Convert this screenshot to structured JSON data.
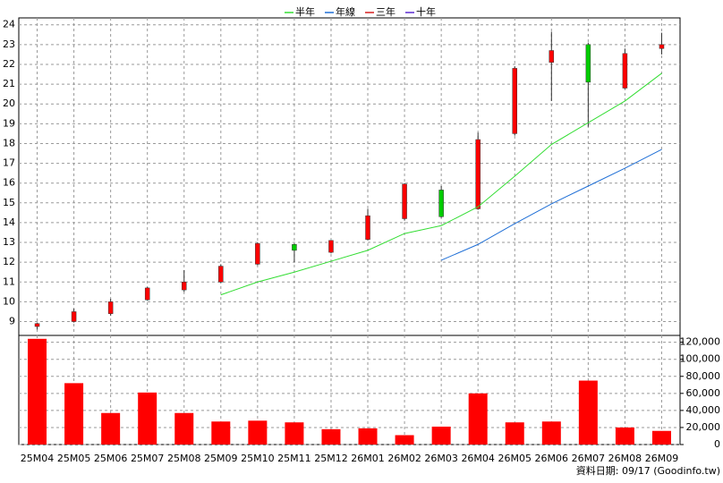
{
  "chart_data": [
    {
      "type": "candlestick",
      "categories": [
        "25M04",
        "25M05",
        "25M06",
        "25M07",
        "25M08",
        "25M09",
        "25M10",
        "25M11",
        "25M12",
        "26M01",
        "26M02",
        "26M03",
        "26M04",
        "26M05",
        "26M06",
        "26M07",
        "26M08",
        "26M09"
      ],
      "open": [
        8.75,
        9.0,
        9.4,
        10.1,
        10.6,
        11.0,
        11.9,
        12.9,
        12.5,
        13.15,
        14.2,
        15.65,
        14.7,
        18.5,
        22.1,
        23.0,
        20.8,
        22.8
      ],
      "high": [
        8.95,
        9.65,
        10.15,
        10.75,
        11.6,
        11.9,
        13.0,
        12.95,
        13.1,
        14.7,
        16.0,
        15.85,
        18.55,
        21.9,
        23.65,
        23.1,
        22.8,
        23.6
      ],
      "low": [
        8.6,
        8.95,
        9.3,
        10.05,
        10.5,
        10.95,
        11.85,
        12.0,
        12.45,
        13.1,
        14.1,
        14.25,
        14.65,
        18.4,
        20.15,
        18.85,
        20.75,
        22.5
      ],
      "close": [
        8.9,
        9.5,
        10.0,
        10.7,
        11.0,
        11.8,
        12.95,
        12.6,
        13.1,
        14.35,
        15.95,
        14.3,
        18.2,
        21.8,
        22.7,
        21.1,
        22.55,
        23.0
      ],
      "up_color": "#ff0000",
      "down_color": "#00cc00",
      "series": [
        {
          "name": "半年",
          "color": "#33dd33",
          "values": [
            null,
            null,
            null,
            null,
            null,
            10.35,
            11.0,
            11.5,
            12.05,
            12.6,
            13.45,
            13.85,
            14.8,
            16.35,
            17.95,
            19.05,
            20.15,
            21.55
          ]
        },
        {
          "name": "年線",
          "color": "#1f6fd6",
          "values": [
            null,
            null,
            null,
            null,
            null,
            null,
            null,
            null,
            null,
            null,
            null,
            12.1,
            12.9,
            13.95,
            14.95,
            15.85,
            16.75,
            17.7
          ]
        },
        {
          "name": "三年",
          "color": "#d62020",
          "values": [
            null,
            null,
            null,
            null,
            null,
            null,
            null,
            null,
            null,
            null,
            null,
            null,
            null,
            null,
            null,
            null,
            null,
            null
          ]
        },
        {
          "name": "十年",
          "color": "#5a2bd0",
          "values": [
            null,
            null,
            null,
            null,
            null,
            null,
            null,
            null,
            null,
            null,
            null,
            null,
            null,
            null,
            null,
            null,
            null,
            null
          ]
        }
      ],
      "ylim": [
        8.3,
        24.35
      ],
      "yticks": [
        9,
        10,
        11,
        12,
        13,
        14,
        15,
        16,
        17,
        18,
        19,
        20,
        21,
        22,
        23,
        24
      ],
      "grid": true
    },
    {
      "type": "bar",
      "color": "#ff0000",
      "values": [
        124000,
        72000,
        37000,
        61000,
        37000,
        27000,
        28000,
        26000,
        18000,
        19000,
        11000,
        21000,
        60000,
        26000,
        27000,
        75000,
        20000,
        16000
      ],
      "ylim": [
        0,
        128000
      ],
      "yticks": [
        0,
        {
          "value": 20000,
          "label": "20,000"
        },
        {
          "value": 40000,
          "label": "40,000"
        },
        {
          "value": 60000,
          "label": "60,000"
        },
        {
          "value": 80000,
          "label": "80,000"
        },
        {
          "value": 100000,
          "label": "100,000"
        },
        {
          "value": 120000,
          "label": "120,000"
        }
      ],
      "grid": true
    }
  ],
  "footer": "資料日期: 09/17 (Goodinfo.tw)"
}
